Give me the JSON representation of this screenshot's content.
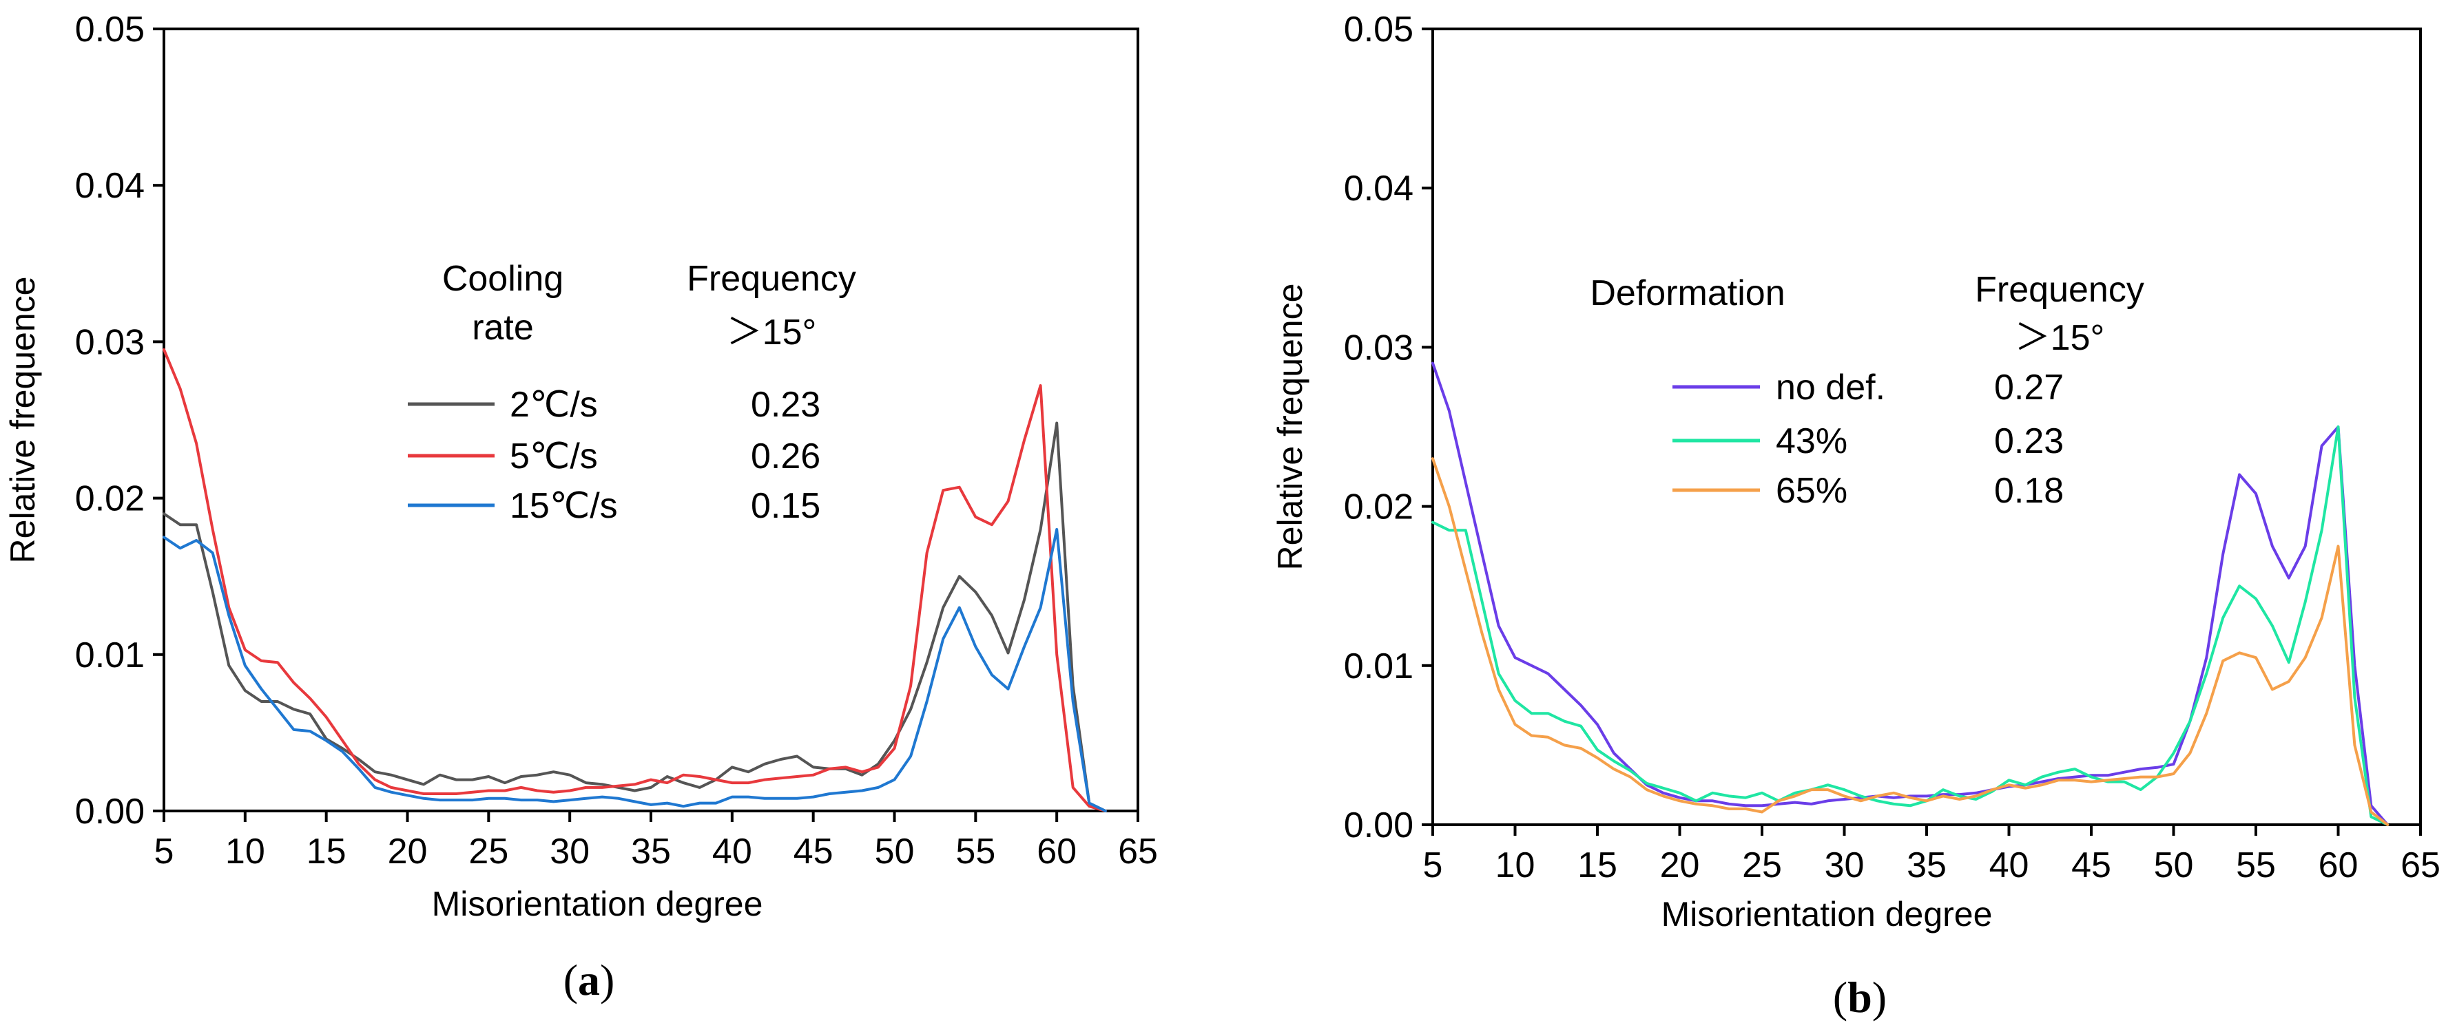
{
  "chart_data": [
    {
      "type": "line",
      "caption_open": "(",
      "caption_letter": "a",
      "caption_close": ")",
      "xlabel": "Misorientation  degree",
      "ylabel": "Relative frequence",
      "xlim": [
        5,
        65
      ],
      "ylim": [
        0,
        0.05
      ],
      "xticks": [
        5,
        10,
        15,
        20,
        25,
        30,
        35,
        40,
        45,
        50,
        55,
        60,
        65
      ],
      "yticks": [
        "0.00",
        "0.01",
        "0.02",
        "0.03",
        "0.04",
        "0.05"
      ],
      "legend_header": [
        "Cooling",
        "rate"
      ],
      "freq_header": [
        "Frequency",
        "＞15°"
      ],
      "series": [
        {
          "name": "2℃/s",
          "frequency": "0.23",
          "color": "#555555",
          "x": [
            5,
            6,
            7,
            8,
            9,
            10,
            11,
            12,
            13,
            14,
            15,
            16,
            17,
            18,
            19,
            20,
            21,
            22,
            23,
            24,
            25,
            26,
            27,
            28,
            29,
            30,
            31,
            32,
            33,
            34,
            35,
            36,
            37,
            38,
            39,
            40,
            41,
            42,
            43,
            44,
            45,
            46,
            47,
            48,
            49,
            50,
            51,
            52,
            53,
            54,
            55,
            56,
            57,
            58,
            59,
            60,
            61,
            62,
            63
          ],
          "y": [
            0.019,
            0.0183,
            0.0183,
            0.014,
            0.0093,
            0.0077,
            0.007,
            0.007,
            0.0065,
            0.0062,
            0.0046,
            0.004,
            0.0033,
            0.0025,
            0.0023,
            0.002,
            0.0017,
            0.0023,
            0.002,
            0.002,
            0.0022,
            0.0018,
            0.0022,
            0.0023,
            0.0025,
            0.0023,
            0.0018,
            0.0017,
            0.0015,
            0.0013,
            0.0015,
            0.0022,
            0.0018,
            0.0015,
            0.002,
            0.0028,
            0.0025,
            0.003,
            0.0033,
            0.0035,
            0.0028,
            0.0027,
            0.0027,
            0.0023,
            0.003,
            0.0045,
            0.0065,
            0.0095,
            0.013,
            0.015,
            0.014,
            0.0125,
            0.0101,
            0.0135,
            0.018,
            0.0248,
            0.008,
            0.0005,
            0.0
          ]
        },
        {
          "name": "5℃/s",
          "frequency": "0.26",
          "color": "#e8393d",
          "x": [
            5,
            6,
            7,
            8,
            9,
            10,
            11,
            12,
            13,
            14,
            15,
            16,
            17,
            18,
            19,
            20,
            21,
            22,
            23,
            24,
            25,
            26,
            27,
            28,
            29,
            30,
            31,
            32,
            33,
            34,
            35,
            36,
            37,
            38,
            39,
            40,
            41,
            42,
            43,
            44,
            45,
            46,
            47,
            48,
            49,
            50,
            51,
            52,
            53,
            54,
            55,
            56,
            57,
            58,
            59,
            60,
            61,
            62,
            63
          ],
          "y": [
            0.0295,
            0.027,
            0.0235,
            0.018,
            0.013,
            0.0103,
            0.0096,
            0.0095,
            0.0082,
            0.0072,
            0.006,
            0.0045,
            0.003,
            0.002,
            0.0015,
            0.0013,
            0.0011,
            0.0011,
            0.0011,
            0.0012,
            0.0013,
            0.0013,
            0.0015,
            0.0013,
            0.0012,
            0.0013,
            0.0015,
            0.0015,
            0.0016,
            0.0017,
            0.002,
            0.0018,
            0.0023,
            0.0022,
            0.002,
            0.0018,
            0.0018,
            0.002,
            0.0021,
            0.0022,
            0.0023,
            0.0027,
            0.0028,
            0.0025,
            0.0028,
            0.004,
            0.008,
            0.0165,
            0.0205,
            0.0207,
            0.0188,
            0.0183,
            0.0198,
            0.0237,
            0.0272,
            0.01,
            0.0015,
            0.0003,
            0.0
          ]
        },
        {
          "name": "15℃/s",
          "frequency": "0.15",
          "color": "#1f78d1",
          "x": [
            5,
            6,
            7,
            8,
            9,
            10,
            11,
            12,
            13,
            14,
            15,
            16,
            17,
            18,
            19,
            20,
            21,
            22,
            23,
            24,
            25,
            26,
            27,
            28,
            29,
            30,
            31,
            32,
            33,
            34,
            35,
            36,
            37,
            38,
            39,
            40,
            41,
            42,
            43,
            44,
            45,
            46,
            47,
            48,
            49,
            50,
            51,
            52,
            53,
            54,
            55,
            56,
            57,
            58,
            59,
            60,
            61,
            62,
            63
          ],
          "y": [
            0.0175,
            0.0168,
            0.0173,
            0.0165,
            0.0125,
            0.0093,
            0.0078,
            0.0065,
            0.0052,
            0.0051,
            0.0045,
            0.0038,
            0.0027,
            0.0015,
            0.0012,
            0.001,
            0.0008,
            0.0007,
            0.0007,
            0.0007,
            0.0008,
            0.0008,
            0.0007,
            0.0007,
            0.0006,
            0.0007,
            0.0008,
            0.0009,
            0.0008,
            0.0006,
            0.0004,
            0.0005,
            0.0003,
            0.0005,
            0.0005,
            0.0009,
            0.0009,
            0.0008,
            0.0008,
            0.0008,
            0.0009,
            0.0011,
            0.0012,
            0.0013,
            0.0015,
            0.002,
            0.0035,
            0.007,
            0.011,
            0.013,
            0.0105,
            0.0087,
            0.0078,
            0.0105,
            0.013,
            0.018,
            0.007,
            0.0005,
            0.0
          ]
        }
      ]
    },
    {
      "type": "line",
      "caption_open": "(",
      "caption_letter": "b",
      "caption_close": ")",
      "xlabel": "Misorientation  degree",
      "ylabel": "Relative frequence",
      "xlim": [
        5,
        65
      ],
      "ylim": [
        0,
        0.05
      ],
      "xticks": [
        5,
        10,
        15,
        20,
        25,
        30,
        35,
        40,
        45,
        50,
        55,
        60,
        65
      ],
      "yticks": [
        "0.00",
        "0.01",
        "0.02",
        "0.03",
        "0.04",
        "0.05"
      ],
      "legend_header": [
        "Deformation"
      ],
      "freq_header": [
        "Frequency",
        "＞15°"
      ],
      "series": [
        {
          "name": "no def.",
          "frequency": "0.27",
          "color": "#6a3de8",
          "x": [
            5,
            6,
            7,
            8,
            9,
            10,
            11,
            12,
            13,
            14,
            15,
            16,
            17,
            18,
            19,
            20,
            21,
            22,
            23,
            24,
            25,
            26,
            27,
            28,
            29,
            30,
            31,
            32,
            33,
            34,
            35,
            36,
            37,
            38,
            39,
            40,
            41,
            42,
            43,
            44,
            45,
            46,
            47,
            48,
            49,
            50,
            51,
            52,
            53,
            54,
            55,
            56,
            57,
            58,
            59,
            60,
            61,
            62,
            63
          ],
          "y": [
            0.029,
            0.026,
            0.0215,
            0.017,
            0.0125,
            0.0105,
            0.01,
            0.0095,
            0.0085,
            0.0075,
            0.0063,
            0.0045,
            0.0035,
            0.0025,
            0.002,
            0.0017,
            0.0015,
            0.0015,
            0.0013,
            0.0012,
            0.0012,
            0.0013,
            0.0014,
            0.0013,
            0.0015,
            0.0016,
            0.0017,
            0.0018,
            0.0017,
            0.0018,
            0.0018,
            0.0019,
            0.0019,
            0.002,
            0.0022,
            0.0024,
            0.0025,
            0.0027,
            0.0029,
            0.003,
            0.0031,
            0.0031,
            0.0033,
            0.0035,
            0.0036,
            0.0038,
            0.0065,
            0.0105,
            0.017,
            0.022,
            0.0208,
            0.0175,
            0.0155,
            0.0175,
            0.0238,
            0.025,
            0.01,
            0.0012,
            0.0
          ]
        },
        {
          "name": "43%",
          "frequency": "0.23",
          "color": "#1fe6a3",
          "x": [
            5,
            6,
            7,
            8,
            9,
            10,
            11,
            12,
            13,
            14,
            15,
            16,
            17,
            18,
            19,
            20,
            21,
            22,
            23,
            24,
            25,
            26,
            27,
            28,
            29,
            30,
            31,
            32,
            33,
            34,
            35,
            36,
            37,
            38,
            39,
            40,
            41,
            42,
            43,
            44,
            45,
            46,
            47,
            48,
            49,
            50,
            51,
            52,
            53,
            54,
            55,
            56,
            57,
            58,
            59,
            60,
            61,
            62,
            63
          ],
          "y": [
            0.019,
            0.0185,
            0.0185,
            0.014,
            0.0095,
            0.0078,
            0.007,
            0.007,
            0.0065,
            0.0062,
            0.0047,
            0.004,
            0.0034,
            0.0026,
            0.0023,
            0.002,
            0.0015,
            0.002,
            0.0018,
            0.0017,
            0.002,
            0.0015,
            0.002,
            0.0022,
            0.0025,
            0.0022,
            0.0018,
            0.0015,
            0.0013,
            0.0012,
            0.0015,
            0.0022,
            0.0018,
            0.0016,
            0.0021,
            0.0028,
            0.0025,
            0.003,
            0.0033,
            0.0035,
            0.003,
            0.0027,
            0.0027,
            0.0022,
            0.003,
            0.0045,
            0.0065,
            0.0095,
            0.013,
            0.015,
            0.0142,
            0.0125,
            0.0102,
            0.014,
            0.0185,
            0.025,
            0.008,
            0.0005,
            0.0
          ]
        },
        {
          "name": "65%",
          "frequency": "0.18",
          "color": "#f5a04a",
          "x": [
            5,
            6,
            7,
            8,
            9,
            10,
            11,
            12,
            13,
            14,
            15,
            16,
            17,
            18,
            19,
            20,
            21,
            22,
            23,
            24,
            25,
            26,
            27,
            28,
            29,
            30,
            31,
            32,
            33,
            34,
            35,
            36,
            37,
            38,
            39,
            40,
            41,
            42,
            43,
            44,
            45,
            46,
            47,
            48,
            49,
            50,
            51,
            52,
            53,
            54,
            55,
            56,
            57,
            58,
            59,
            60,
            61,
            62,
            63
          ],
          "y": [
            0.023,
            0.02,
            0.016,
            0.012,
            0.0085,
            0.0063,
            0.0056,
            0.0055,
            0.005,
            0.0048,
            0.0042,
            0.0035,
            0.003,
            0.0022,
            0.0018,
            0.0015,
            0.0013,
            0.0012,
            0.001,
            0.001,
            0.0008,
            0.0015,
            0.0018,
            0.0022,
            0.0022,
            0.0018,
            0.0015,
            0.0018,
            0.002,
            0.0017,
            0.0015,
            0.0018,
            0.0016,
            0.0018,
            0.0022,
            0.0025,
            0.0023,
            0.0025,
            0.0028,
            0.0028,
            0.0027,
            0.0028,
            0.0029,
            0.003,
            0.003,
            0.0032,
            0.0045,
            0.007,
            0.0103,
            0.0108,
            0.0105,
            0.0085,
            0.009,
            0.0105,
            0.013,
            0.0175,
            0.005,
            0.0008,
            0.0
          ]
        }
      ]
    }
  ]
}
